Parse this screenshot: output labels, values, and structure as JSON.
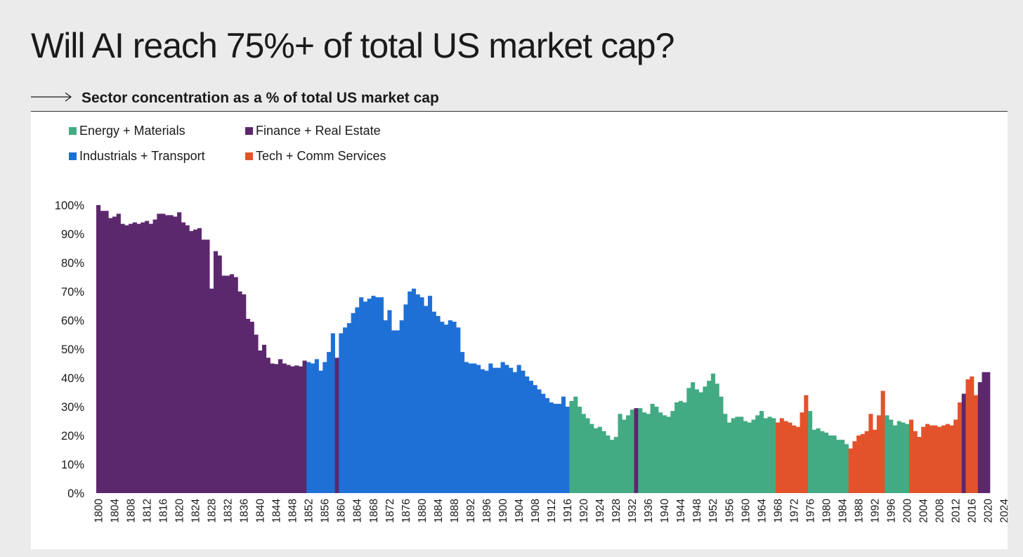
{
  "page": {
    "title": "Will AI reach 75%+ of total US market cap?",
    "subtitle": "Sector concentration as a % of total US market cap"
  },
  "legend": [
    {
      "label": "Energy + Materials",
      "color": "#43ab83"
    },
    {
      "label": "Finance + Real Estate",
      "color": "#5c286d"
    },
    {
      "label": "Industrials + Transport",
      "color": "#1f70d6"
    },
    {
      "label": "Tech + Comm Services",
      "color": "#e2532c"
    }
  ],
  "chart_data": {
    "type": "bar",
    "title": "Sector concentration as a % of total US market cap",
    "xlabel": "",
    "ylabel": "",
    "ylim": [
      0,
      100
    ],
    "yticks": [
      "0%",
      "10%",
      "20%",
      "30%",
      "40%",
      "50%",
      "60%",
      "70%",
      "80%",
      "90%",
      "100%"
    ],
    "x_tick_step": 4,
    "grid": false,
    "legend_position": "top-left",
    "start_year": 1800,
    "end_year": 2025,
    "series_colors": {
      "F": "#5c286d",
      "I": "#1f70d6",
      "E": "#43ab83",
      "T": "#e2532c"
    },
    "series_names": {
      "F": "Finance + Real Estate",
      "I": "Industrials + Transport",
      "E": "Energy + Materials",
      "T": "Tech + Comm Services"
    },
    "values": [
      100,
      98,
      98,
      95.5,
      96,
      97,
      93.5,
      93,
      93.5,
      94,
      93.5,
      94,
      94.5,
      93.5,
      95,
      97,
      97,
      96.5,
      96.5,
      96,
      97.5,
      94,
      93,
      91,
      91.5,
      92,
      88,
      88,
      71,
      84,
      82.5,
      75.5,
      75.5,
      76,
      75,
      70,
      69,
      60.5,
      59.5,
      55,
      49.5,
      51.5,
      47,
      45,
      44.8,
      46.5,
      45,
      44.5,
      44,
      44.3,
      44,
      46,
      45.5,
      45,
      46.5,
      42.5,
      45.5,
      49,
      55.5,
      47,
      55.5,
      57.5,
      59,
      62.5,
      64.5,
      68,
      66.5,
      67.5,
      68.5,
      68,
      68,
      60,
      63.5,
      56.5,
      56.5,
      60,
      65.5,
      70,
      71,
      69,
      68,
      65,
      68.5,
      63,
      61.5,
      59.5,
      58.5,
      60,
      59.5,
      57.5,
      49,
      45.5,
      45,
      45,
      44.5,
      43,
      42.5,
      45,
      43.5,
      43.5,
      45.5,
      44.5,
      43.5,
      42,
      44.5,
      42.5,
      40.5,
      39,
      37.5,
      36,
      34.5,
      33,
      31.5,
      31,
      31,
      33.5,
      30,
      32,
      33.5,
      30,
      27.5,
      26,
      24,
      22.5,
      23,
      21.5,
      20,
      18.5,
      19.5,
      27.5,
      25.5,
      27,
      29,
      29.5,
      29.5,
      28,
      27.5,
      31,
      30,
      28,
      27,
      26.5,
      28.5,
      31.5,
      32,
      31.5,
      36.5,
      38.5,
      36,
      35,
      37,
      39,
      41.5,
      38,
      33.5,
      27.5,
      24.5,
      26,
      26.5,
      26.5,
      25,
      24.5,
      25.5,
      27,
      28.5,
      26,
      26.5,
      26,
      24.5,
      26,
      25,
      24.5,
      23.5,
      23,
      28,
      34,
      28.5,
      22,
      22.5,
      21.5,
      21,
      20,
      20,
      18.5,
      18.5,
      17,
      15.5,
      18,
      20,
      20.5,
      21.5,
      27.5,
      22,
      27,
      35.5,
      27,
      25.5,
      23.5,
      25,
      24.5,
      24,
      25.5,
      21.5,
      19.5,
      23,
      24,
      23.5,
      23.5,
      23,
      23.5,
      24,
      23.5,
      25.5,
      31.5,
      34.5,
      39.5,
      40.5,
      34,
      38.5,
      42,
      42
    ],
    "sectors": "FFFFFFFFFFFFFFFFFFFFFFFFFFFFFFFFFFFFFFFFFFFFFFFFFFFFIIIIIIIFIIIIIIIIIIIIIIIIIIIIIIIIIIIIIIIIIIIIIIIIIIIIIIIIIIIIIIIIIEEEEEEEEEEEEEEEEFEEEEEEEEEEEEEEEEEEEEEEEEEEEEEEEEEETTTTTTTTEEEEEEEEEETTTTTTTTTEEEEEETTTTTTTTTTTTTFTTTFFFFTTTTTTTTTTTTTTTTT"
  }
}
